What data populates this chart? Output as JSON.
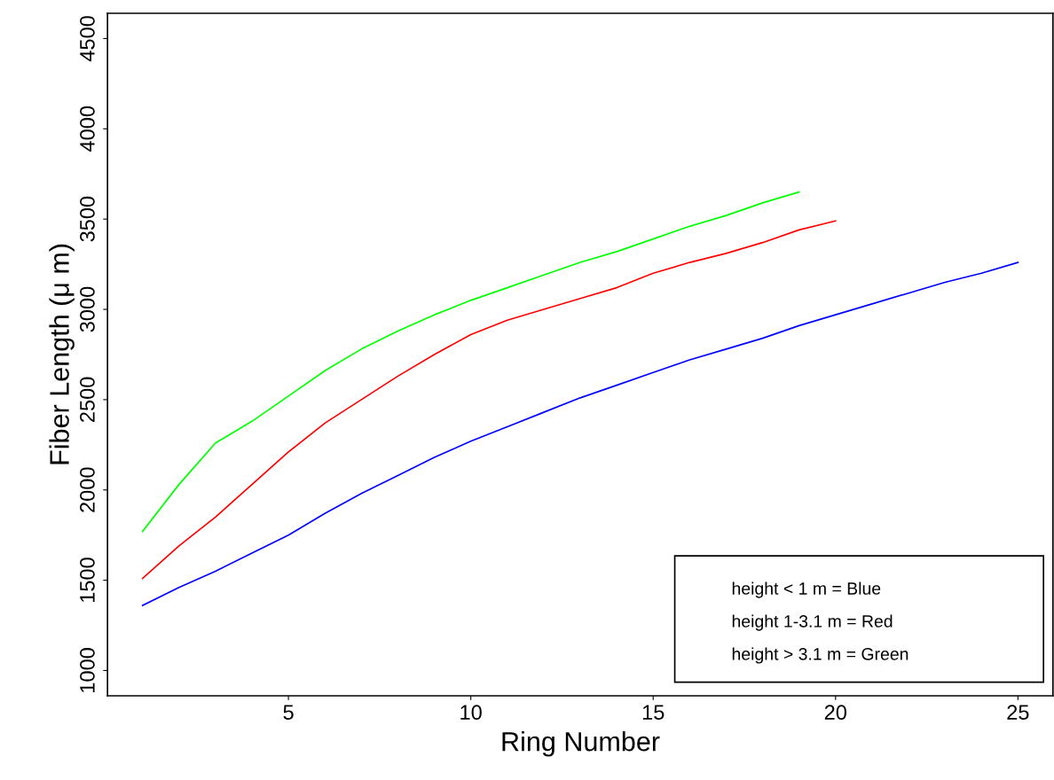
{
  "chart_data": {
    "type": "line",
    "xlabel": "Ring Number",
    "ylabel": "Fiber Length (μ m)",
    "xlim": [
      0.04,
      25.96
    ],
    "xticks": [
      5,
      10,
      15,
      20,
      25
    ],
    "ylim": [
      860,
      4640
    ],
    "yticks": [
      1000,
      1500,
      2000,
      2500,
      3000,
      3500,
      4000,
      4500
    ],
    "grid": false,
    "line_style": "solid",
    "marker": "none",
    "annotations": [
      "height < 1 m = Blue",
      "height 1-3.1 m = Red",
      "height > 3.1 m = Green"
    ],
    "series": [
      {
        "color": "#0000ff",
        "x": [
          1,
          2,
          3,
          4,
          5,
          6,
          7,
          8,
          9,
          10,
          11,
          12,
          13,
          14,
          15,
          16,
          17,
          18,
          19,
          20,
          21,
          22,
          23,
          24,
          25
        ],
        "values": [
          1360,
          1460,
          1550,
          1650,
          1750,
          1870,
          1980,
          2080,
          2180,
          2270,
          2350,
          2430,
          2510,
          2580,
          2650,
          2720,
          2780,
          2840,
          2910,
          2970,
          3030,
          3090,
          3150,
          3200,
          3260
        ]
      },
      {
        "color": "#ff0000",
        "x": [
          1,
          2,
          3,
          4,
          5,
          6,
          7,
          8,
          9,
          10,
          11,
          12,
          13,
          14,
          15,
          16,
          17,
          18,
          19,
          20
        ],
        "values": [
          1510,
          1690,
          1850,
          2030,
          2210,
          2370,
          2500,
          2630,
          2750,
          2860,
          2940,
          3000,
          3060,
          3120,
          3200,
          3260,
          3310,
          3370,
          3440,
          3490
        ]
      },
      {
        "color": "#00ff00",
        "x": [
          1,
          2,
          3,
          4,
          5,
          6,
          7,
          8,
          9,
          10,
          11,
          12,
          13,
          14,
          15,
          16,
          17,
          18,
          19
        ],
        "values": [
          1770,
          2030,
          2260,
          2380,
          2520,
          2660,
          2780,
          2880,
          2970,
          3050,
          3120,
          3190,
          3260,
          3320,
          3390,
          3460,
          3520,
          3590,
          3650
        ]
      }
    ]
  }
}
